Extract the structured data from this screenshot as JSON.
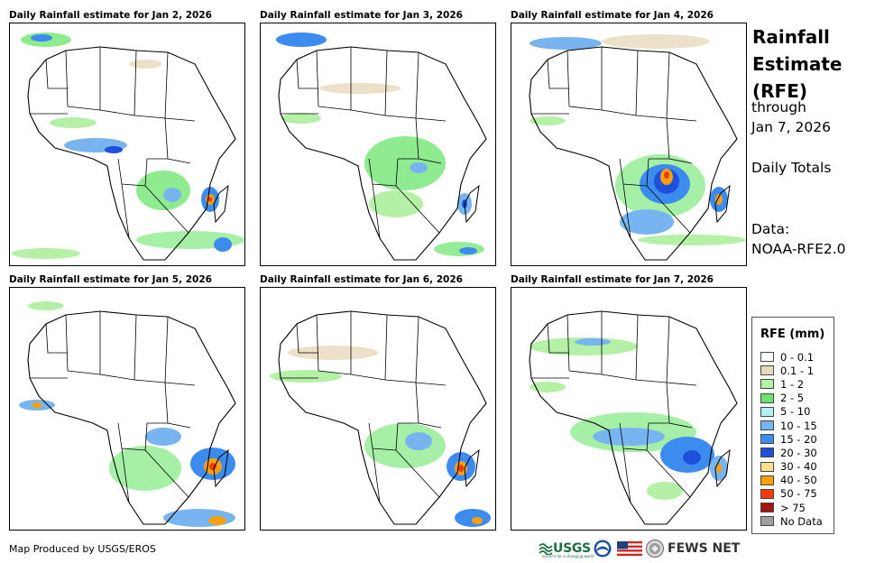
{
  "panels": [
    {
      "title": "Daily Rainfall estimate for Jan 2, 2026"
    },
    {
      "title": "Daily Rainfall estimate for Jan 3, 2026"
    },
    {
      "title": "Daily Rainfall estimate for Jan 4, 2026"
    },
    {
      "title": "Daily Rainfall estimate for Jan 5, 2026"
    },
    {
      "title": "Daily Rainfall estimate for Jan 6, 2026"
    },
    {
      "title": "Daily Rainfall estimate for Jan 7, 2026"
    }
  ],
  "sidebar": {
    "title_line1": "Rainfall",
    "title_line2": "Estimate",
    "title_line3": "(RFE)",
    "through": "through",
    "date": "Jan 7, 2026",
    "totals": "Daily Totals",
    "data_label": "Data:",
    "data_source": "NOAA-RFE2.0"
  },
  "legend": {
    "title": "RFE (mm)",
    "items": [
      {
        "label": "0 - 0.1",
        "color": "#ffffff"
      },
      {
        "label": "0.1 - 1",
        "color": "#e8d8bc"
      },
      {
        "label": "1 - 2",
        "color": "#b4f0a6"
      },
      {
        "label": "2 - 5",
        "color": "#6ae46a"
      },
      {
        "label": "5 - 10",
        "color": "#b4f0f4"
      },
      {
        "label": "10 - 15",
        "color": "#78b4f0"
      },
      {
        "label": "15 - 20",
        "color": "#3c8cf0"
      },
      {
        "label": "20 - 30",
        "color": "#1e50dc"
      },
      {
        "label": "30 - 40",
        "color": "#f8e08a"
      },
      {
        "label": "40 - 50",
        "color": "#f8a010"
      },
      {
        "label": "50 - 75",
        "color": "#f03c0a"
      },
      {
        "label": "> 75",
        "color": "#a01414"
      },
      {
        "label": "No Data",
        "color": "#a0a0a0"
      }
    ]
  },
  "footer": {
    "credit": "Map Produced by USGS/EROS",
    "usgs": "USGS",
    "usgs_tagline": "science for a changing world",
    "fews": "FEWS NET"
  }
}
